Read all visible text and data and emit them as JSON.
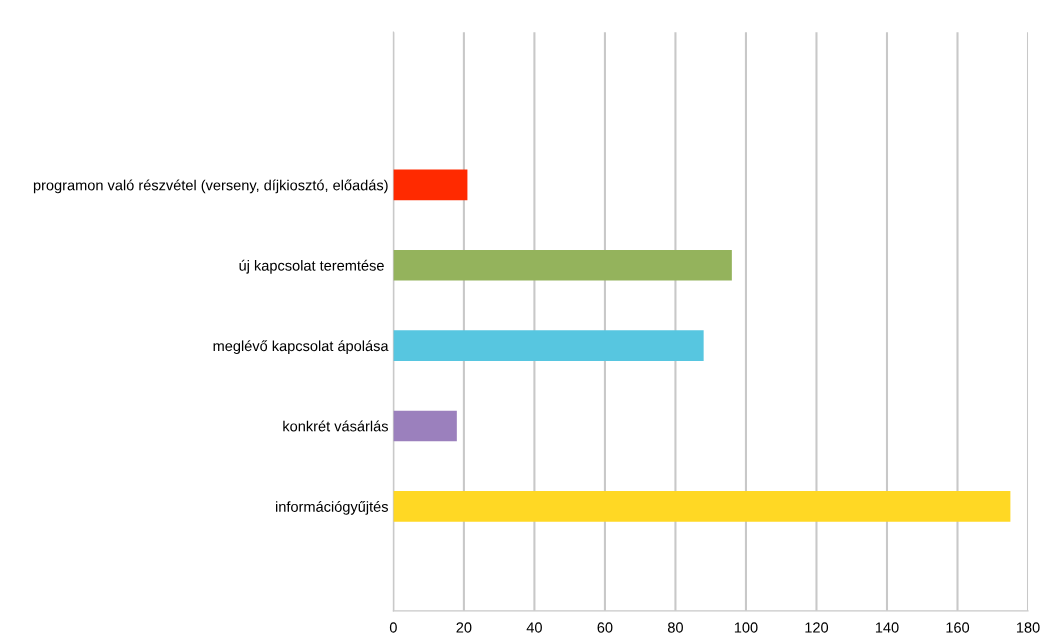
{
  "chart_data": {
    "type": "bar",
    "orientation": "horizontal",
    "categories": [
      "programon való részvétel (verseny, díjkiosztó, előadás)",
      "új kapcsolat teremtése ",
      "meglévő kapcsolat ápolása",
      "konkrét vásárlás",
      "információgyűjtés"
    ],
    "values": [
      21,
      96,
      88,
      18,
      175
    ],
    "colors": [
      "#ff2a00",
      "#94b35c",
      "#57c6e0",
      "#9b80bd",
      "#ffd824"
    ],
    "xlim": [
      0,
      180
    ],
    "xticks": [
      0,
      20,
      40,
      60,
      80,
      100,
      120,
      140,
      160,
      180
    ],
    "grid": "x"
  }
}
